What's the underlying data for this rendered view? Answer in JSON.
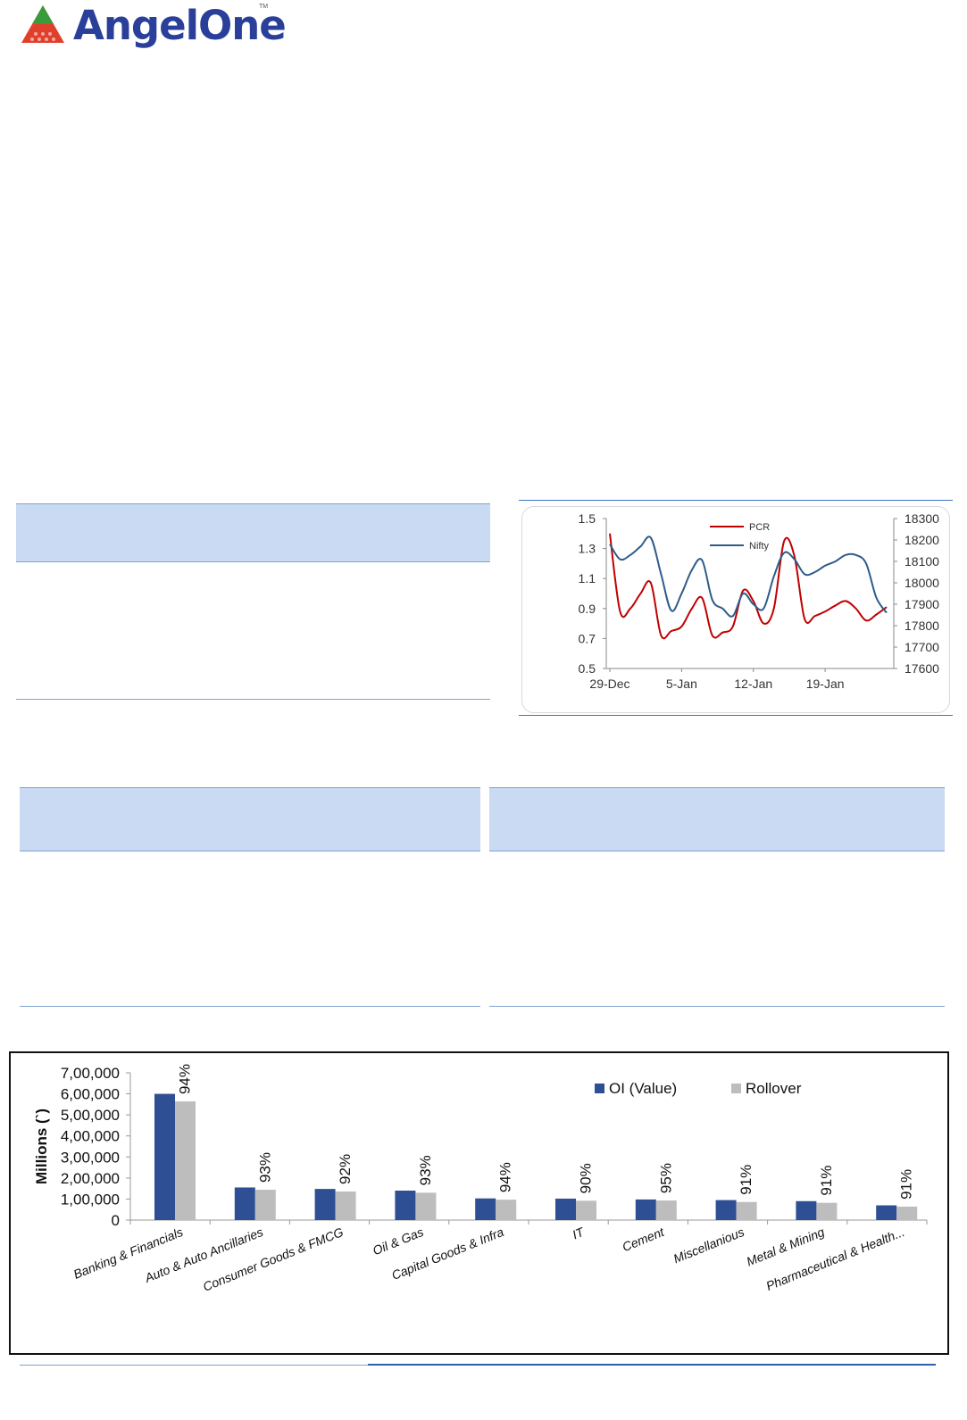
{
  "brand": {
    "name": "AngelOne",
    "trademark": "TM",
    "colors": {
      "text": "#2a3f9a",
      "mark_red": "#e0402b",
      "mark_green": "#3a9b3a"
    }
  },
  "pcr_chart": {
    "chart_data": {
      "type": "line",
      "x_ticks": [
        "29-Dec",
        "5-Jan",
        "12-Jan",
        "19-Jan"
      ],
      "y_left": {
        "ticks": [
          "1.5",
          "1.3",
          "1.1",
          "0.9",
          "0.7",
          "0.5"
        ],
        "range": [
          0.5,
          1.5
        ]
      },
      "y_right": {
        "ticks": [
          "18300",
          "18200",
          "18100",
          "18000",
          "17900",
          "17800",
          "17700",
          "17600"
        ],
        "range": [
          17600,
          18300
        ]
      },
      "legend": [
        "PCR",
        "Nifty"
      ],
      "series": [
        {
          "name": "PCR",
          "color": "#c00000",
          "axis": "left",
          "x": [
            0,
            1,
            2,
            3,
            4,
            5,
            6,
            7,
            8,
            9,
            10,
            11,
            12,
            13,
            14,
            15,
            16,
            17,
            18,
            19,
            20,
            21,
            22,
            23,
            24,
            25,
            26,
            27
          ],
          "values": [
            1.4,
            0.88,
            0.9,
            1.0,
            1.07,
            0.72,
            0.75,
            0.78,
            0.9,
            0.97,
            0.72,
            0.74,
            0.78,
            1.02,
            0.95,
            0.8,
            0.9,
            1.35,
            1.25,
            0.83,
            0.85,
            0.88,
            0.92,
            0.95,
            0.9,
            0.82,
            0.86,
            0.91
          ]
        },
        {
          "name": "Nifty",
          "color": "#2e5c8a",
          "axis": "right",
          "x": [
            0,
            1,
            2,
            3,
            4,
            5,
            6,
            7,
            8,
            9,
            10,
            11,
            12,
            13,
            14,
            15,
            16,
            17,
            18,
            19,
            20,
            21,
            22,
            23,
            24,
            25,
            26,
            27
          ],
          "values": [
            18180,
            18110,
            18130,
            18170,
            18210,
            18040,
            17870,
            17950,
            18060,
            18105,
            17920,
            17880,
            17845,
            17950,
            17900,
            17880,
            18030,
            18140,
            18110,
            18040,
            18050,
            18080,
            18100,
            18130,
            18130,
            18090,
            17930,
            17860
          ]
        }
      ]
    }
  },
  "sector_chart": {
    "chart_data": {
      "type": "bar",
      "ylabel": "Millions (`)",
      "yticks": [
        "7,00,000",
        "6,00,000",
        "5,00,000",
        "4,00,000",
        "3,00,000",
        "2,00,000",
        "1,00,000",
        "0"
      ],
      "ylim": [
        0,
        700000
      ],
      "categories": [
        "Banking & Financials",
        "Auto & Auto Ancillaries",
        "Consumer Goods & FMCG",
        "Oil & Gas",
        "Capital Goods & Infra",
        "IT",
        "Cement",
        "Miscellanious",
        "Metal & Mining",
        "Pharmaceutical & Health..."
      ],
      "series": [
        {
          "name": "OI (Value)",
          "color": "#2e4f94",
          "values": [
            600000,
            155000,
            148000,
            140000,
            103000,
            102000,
            98000,
            95000,
            90000,
            70000
          ]
        },
        {
          "name": "Rollover",
          "color": "#bdbdbd",
          "values": [
            564000,
            144000,
            136000,
            130000,
            97000,
            92000,
            93000,
            86000,
            82000,
            64000
          ]
        }
      ],
      "data_labels": [
        "94%",
        "93%",
        "92%",
        "93%",
        "94%",
        "90%",
        "95%",
        "91%",
        "91%",
        "91%"
      ],
      "legend": {
        "placement": "top-right"
      }
    }
  }
}
